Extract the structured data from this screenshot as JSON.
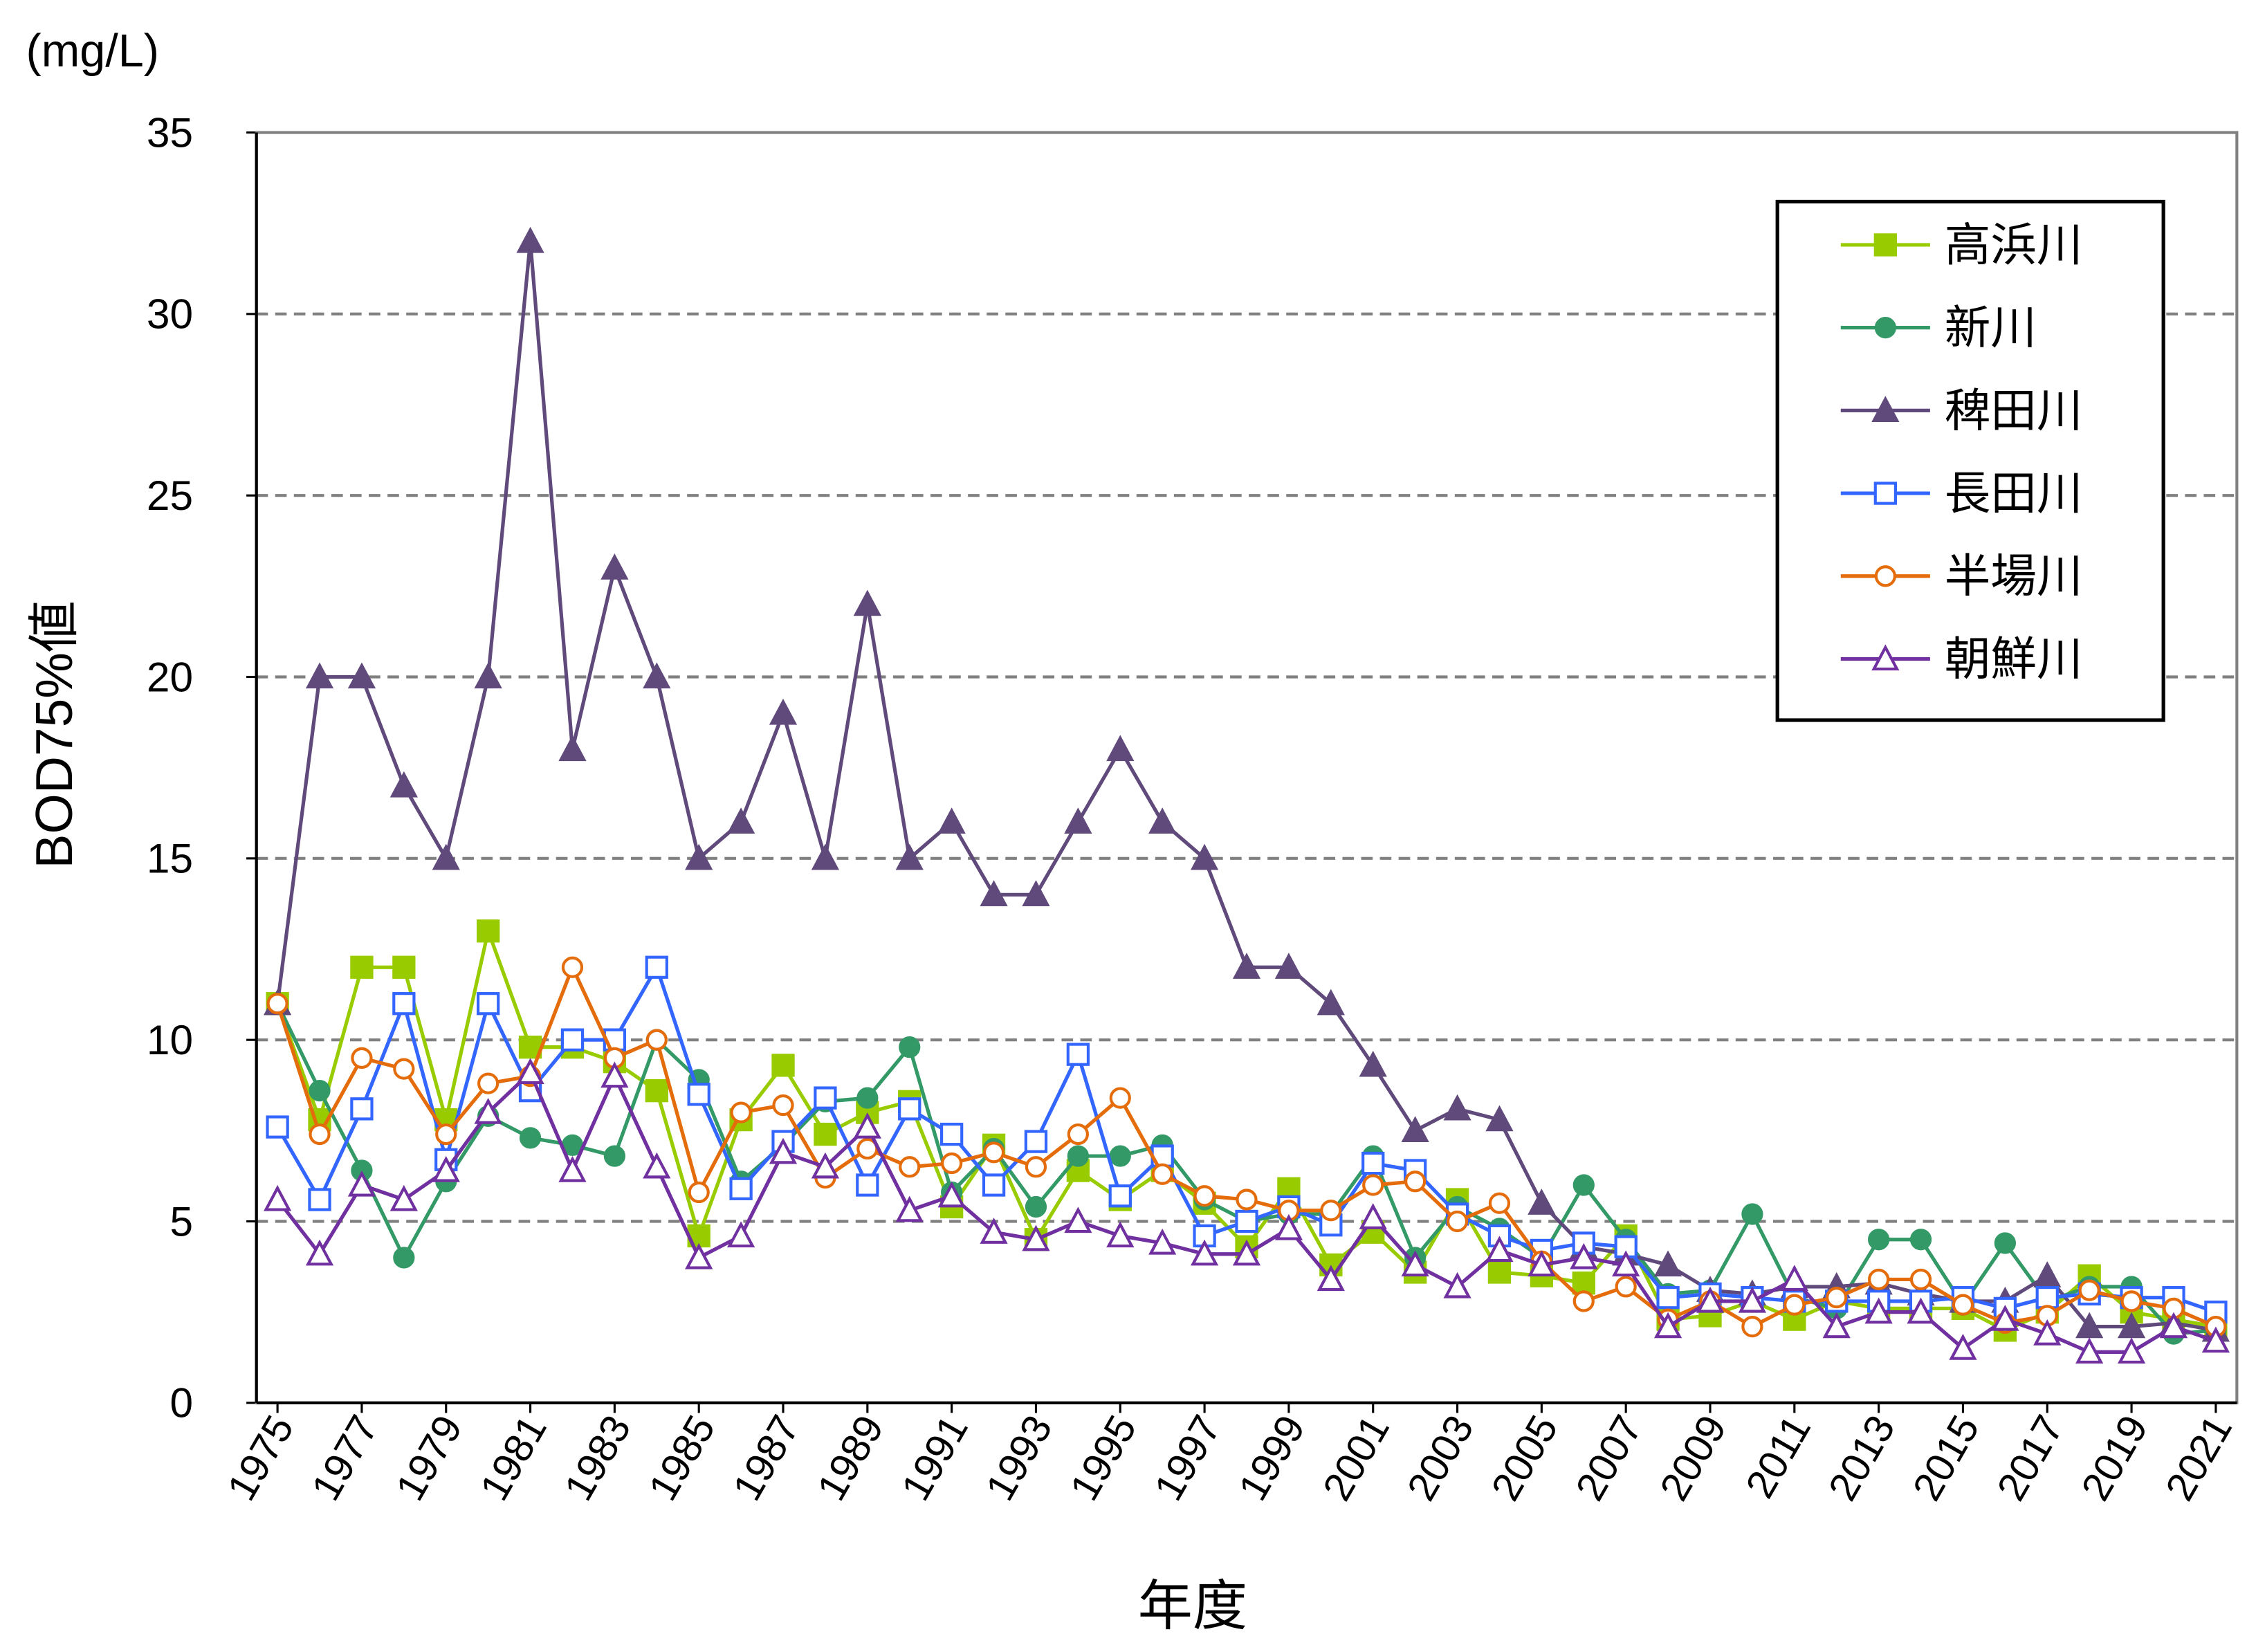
{
  "chart_data": {
    "type": "line",
    "unit_label": "(mg/L)",
    "y_label": "BOD75%値",
    "x_label": "年度",
    "x": [
      1975,
      1976,
      1977,
      1978,
      1979,
      1980,
      1981,
      1982,
      1983,
      1984,
      1985,
      1986,
      1987,
      1988,
      1989,
      1990,
      1991,
      1992,
      1993,
      1994,
      1995,
      1996,
      1997,
      1998,
      1999,
      2000,
      2001,
      2002,
      2003,
      2004,
      2005,
      2006,
      2007,
      2008,
      2009,
      2010,
      2011,
      2012,
      2013,
      2014,
      2015,
      2016,
      2017,
      2018,
      2019,
      2020,
      2021
    ],
    "xlim": [
      1974.5,
      2021.5
    ],
    "xticks": [
      1975,
      1977,
      1979,
      1981,
      1983,
      1985,
      1987,
      1989,
      1991,
      1993,
      1995,
      1997,
      1999,
      2001,
      2003,
      2005,
      2007,
      2009,
      2011,
      2013,
      2015,
      2017,
      2019,
      2021
    ],
    "ylim": [
      0,
      35
    ],
    "yticks": [
      0,
      5,
      10,
      15,
      20,
      25,
      30,
      35
    ],
    "grid": true,
    "legend": "upper right",
    "series": [
      {
        "name": "高浜川",
        "color": "#99cc00",
        "marker": "square",
        "filled": true,
        "values": [
          11,
          7.8,
          12,
          12,
          7.8,
          13,
          9.8,
          9.8,
          9.4,
          8.6,
          4.6,
          7.8,
          9.3,
          7.4,
          8.0,
          8.3,
          5.4,
          7.1,
          4.5,
          6.4,
          5.6,
          6.4,
          5.5,
          4.3,
          5.9,
          3.8,
          4.7,
          3.6,
          5.6,
          3.6,
          3.5,
          3.3,
          4.6,
          2.3,
          2.4,
          2.8,
          2.3,
          2.8,
          2.6,
          2.6,
          2.6,
          2.0,
          2.5,
          3.5,
          2.5,
          2.3,
          2.1
        ]
      },
      {
        "name": "新川",
        "color": "#339966",
        "marker": "circle",
        "filled": true,
        "values": [
          11,
          8.6,
          6.4,
          4.0,
          6.1,
          7.9,
          7.3,
          7.1,
          6.8,
          10,
          8.9,
          6.1,
          7.1,
          8.3,
          8.4,
          9.8,
          5.8,
          7.0,
          5.4,
          6.8,
          6.8,
          7.1,
          5.6,
          5.0,
          5.2,
          5.2,
          6.8,
          4.0,
          5.4,
          4.8,
          4.0,
          6.0,
          4.5,
          3.0,
          3.1,
          5.2,
          2.9,
          2.6,
          4.5,
          4.5,
          2.7,
          4.4,
          2.8,
          3.2,
          3.2,
          1.9,
          2.0
        ]
      },
      {
        "name": "稗田川",
        "color": "#604a7b",
        "marker": "triangle",
        "filled": true,
        "values": [
          11,
          20,
          20,
          17,
          15,
          20,
          32,
          18,
          23,
          20,
          15,
          16,
          19,
          15,
          22,
          15,
          16,
          14,
          14,
          16,
          18,
          16,
          15,
          12,
          12,
          11,
          9.3,
          7.5,
          8.1,
          7.8,
          5.5,
          4.3,
          4.1,
          3.8,
          3.1,
          3.0,
          3.2,
          3.2,
          3.3,
          3.0,
          2.8,
          2.8,
          3.5,
          2.1,
          2.1,
          2.2,
          2.0
        ]
      },
      {
        "name": "長田川",
        "color": "#3366ff",
        "marker": "square",
        "filled": false,
        "values": [
          7.6,
          5.6,
          8.1,
          11,
          6.7,
          11,
          8.6,
          10,
          10,
          12,
          8.5,
          5.9,
          7.2,
          8.4,
          6.0,
          8.1,
          7.4,
          6.0,
          7.2,
          9.6,
          5.7,
          6.8,
          4.6,
          5.0,
          5.4,
          4.9,
          6.6,
          6.4,
          5.2,
          4.6,
          4.2,
          4.4,
          4.3,
          2.9,
          3.0,
          2.9,
          2.8,
          2.8,
          2.8,
          2.8,
          2.9,
          2.6,
          2.9,
          3.0,
          2.9,
          2.9,
          2.5
        ]
      },
      {
        "name": "半場川",
        "color": "#e46c0a",
        "marker": "circle",
        "filled": false,
        "values": [
          11,
          7.4,
          9.5,
          9.2,
          7.4,
          8.8,
          9.0,
          12,
          9.5,
          10,
          5.8,
          8.0,
          8.2,
          6.2,
          7.0,
          6.5,
          6.6,
          6.9,
          6.5,
          7.4,
          8.4,
          6.3,
          5.7,
          5.6,
          5.3,
          5.3,
          6.0,
          6.1,
          5.0,
          5.5,
          3.9,
          2.8,
          3.2,
          2.3,
          2.8,
          2.1,
          2.7,
          2.9,
          3.4,
          3.4,
          2.7,
          2.2,
          2.4,
          3.1,
          2.8,
          2.6,
          2.1
        ]
      },
      {
        "name": "朝鮮川",
        "color": "#7030a0",
        "marker": "triangle",
        "filled": false,
        "values": [
          5.6,
          4.1,
          6.0,
          5.6,
          6.4,
          8.0,
          9.1,
          6.4,
          9.0,
          6.5,
          4.0,
          4.6,
          6.9,
          6.5,
          7.6,
          5.3,
          5.7,
          4.7,
          4.5,
          5.0,
          4.6,
          4.4,
          4.1,
          4.1,
          4.8,
          3.4,
          5.1,
          3.8,
          3.2,
          4.2,
          3.8,
          4.0,
          3.8,
          2.1,
          2.8,
          2.8,
          3.4,
          2.1,
          2.5,
          2.5,
          1.5,
          2.3,
          1.9,
          1.4,
          1.4,
          2.1,
          1.7
        ]
      }
    ]
  }
}
